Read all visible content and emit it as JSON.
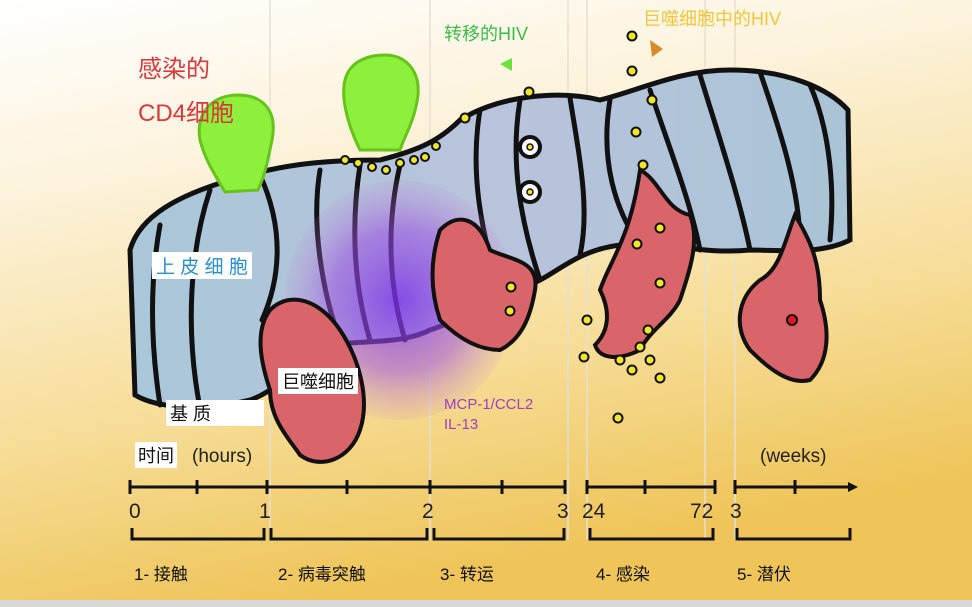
{
  "labels": {
    "infected_cd4_line1": "感染的",
    "infected_cd4_line2": "CD4细胞",
    "epithelial_cells": "上 皮 细 胞",
    "matrix": "基 质",
    "macrophage": "巨噬细胞",
    "transferred_hiv": "转移的HIV",
    "hiv_in_macrophage": "巨噬细胞中的HIV",
    "chemokine_1": "MCP-1/CCL2",
    "chemokine_2": "IL-13"
  },
  "timeline": {
    "time_label": "时间",
    "hours_unit": "(hours)",
    "weeks_unit": "(weeks)",
    "ticks": [
      "0",
      "1",
      "2",
      "3",
      "24",
      "72",
      "3"
    ],
    "stages": [
      "1- 接触",
      "2- 病毒突触",
      "3- 转运",
      "4- 感染",
      "5- 潜伏"
    ]
  },
  "colors": {
    "epithelium": "#a9c4d6",
    "cd4_cell": "#8cf03c",
    "macrophage": "#d9646a",
    "virus": "#f2e62a",
    "synapse": "#8a3ee0",
    "transferred_hiv_label": "#3dbb4a",
    "macrophage_hiv_label": "#f2c63a",
    "infected_label": "#d9383a",
    "chemokine_label": "#a03fbf"
  }
}
